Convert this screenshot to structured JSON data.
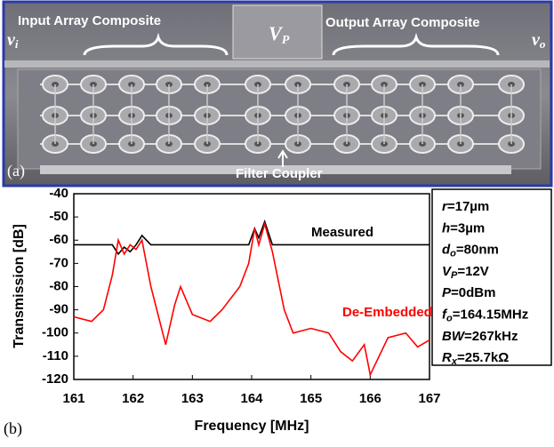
{
  "image": {
    "panel_label": "(a)",
    "input_label": "Input Array Composite",
    "output_label": "Output Array Composite",
    "vp": {
      "symbol": "V",
      "sub": "P"
    },
    "vi": {
      "symbol": "v",
      "sub": "i"
    },
    "vo": {
      "symbol": "v",
      "sub": "o"
    },
    "coupler_label": "Filter Coupler"
  },
  "panel_b_label": "(b)",
  "chart_data": {
    "type": "line",
    "xlabel": "Frequency [MHz]",
    "ylabel": "Transmission [dB]",
    "xlim": [
      161,
      167
    ],
    "xticks": [
      161,
      162,
      163,
      164,
      165,
      166,
      167
    ],
    "ylim": [
      -120,
      -40
    ],
    "yticks": [
      -40,
      -50,
      -60,
      -70,
      -80,
      -90,
      -100,
      -110,
      -120
    ],
    "x": [
      161,
      161.3,
      161.5,
      161.65,
      161.75,
      161.85,
      161.95,
      162.05,
      162.15,
      162.3,
      162.45,
      162.55,
      162.7,
      162.8,
      163,
      163.3,
      163.5,
      163.8,
      163.95,
      164.05,
      164.12,
      164.22,
      164.35,
      164.55,
      164.7,
      165,
      165.3,
      165.5,
      165.7,
      165.9,
      166,
      166.3,
      166.6,
      166.8,
      167
    ],
    "series": [
      {
        "name": "Measured",
        "color": "#000000",
        "values": [
          -62,
          -62,
          -62,
          -62,
          -66,
          -63,
          -65,
          -62,
          -58,
          -62,
          -62,
          -62,
          -62,
          -62,
          -62,
          -62,
          -62,
          -62,
          -62,
          -55,
          -59,
          -52,
          -62,
          -62,
          -62,
          -62,
          -62,
          -62,
          -62,
          -62,
          -62,
          -62,
          -62,
          -62,
          -62
        ]
      },
      {
        "name": "De-Embedded",
        "color": "#ff0000",
        "values": [
          -93,
          -95,
          -90,
          -75,
          -60,
          -66,
          -62,
          -64,
          -60,
          -80,
          -95,
          -105,
          -88,
          -80,
          -92,
          -95,
          -90,
          -80,
          -70,
          -55,
          -62,
          -53,
          -65,
          -90,
          -100,
          -98,
          -100,
          -108,
          -112,
          -105,
          -118,
          -102,
          -100,
          -106,
          -103
        ]
      }
    ],
    "parameters": [
      {
        "symbol": "r",
        "rest": "=17µm"
      },
      {
        "symbol": "h",
        "rest": "=3µm"
      },
      {
        "symbol": "d",
        "sub": "o",
        "rest": "=80nm"
      },
      {
        "symbol": "V",
        "sub": "P",
        "rest": "=12V"
      },
      {
        "symbol": "P",
        "rest": "=0dBm"
      },
      {
        "symbol": "f",
        "sub": "o",
        "rest": "=164.15MHz"
      },
      {
        "symbol": "BW",
        "rest": "=267kHz"
      },
      {
        "symbol": "R",
        "sub": "x",
        "rest": "=25.7kΩ"
      }
    ]
  }
}
